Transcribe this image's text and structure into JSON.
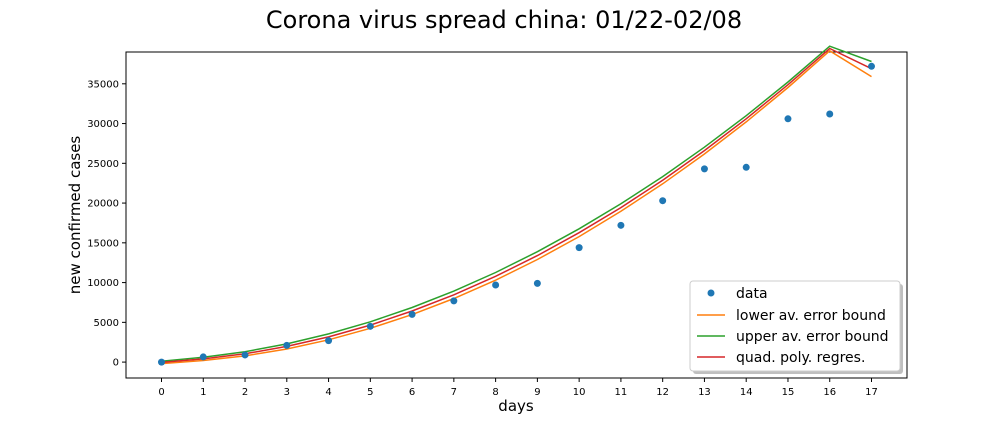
{
  "chart_data": {
    "type": "line",
    "title": "Corona virus spread china: 01/22-02/08",
    "xlabel": "days",
    "ylabel": "new confirmed cases",
    "xlim": [
      -0.85,
      17.85
    ],
    "ylim": [
      -2000,
      39000
    ],
    "x_ticks": [
      0,
      1,
      2,
      3,
      4,
      5,
      6,
      7,
      8,
      9,
      10,
      11,
      12,
      13,
      14,
      15,
      16,
      17
    ],
    "y_ticks": [
      0,
      5000,
      10000,
      15000,
      20000,
      25000,
      30000,
      35000
    ],
    "grid": false,
    "legend_position": "bottom-right",
    "data_series": {
      "name": "data",
      "color": "#1f77b4",
      "x": [
        0,
        1,
        2,
        3,
        4,
        5,
        6,
        7,
        8,
        9,
        10,
        11,
        12,
        13,
        14,
        15,
        16,
        17
      ],
      "y": [
        0,
        650,
        900,
        2100,
        2700,
        4500,
        6000,
        7700,
        9700,
        9900,
        14400,
        17200,
        20300,
        24300,
        24500,
        30600,
        31200,
        37200
      ]
    },
    "fit_series": [
      {
        "name": "lower av. error bound",
        "color": "#ff7f0e",
        "x": [
          0,
          1,
          2,
          3,
          4,
          5,
          6,
          7,
          8,
          9,
          10,
          11,
          12,
          13,
          14,
          15,
          16,
          17
        ],
        "y": [
          -190,
          201,
          780,
          1648,
          2802,
          4246,
          5977,
          7997,
          10305,
          12902,
          15787,
          18960,
          22422,
          26173,
          30212,
          34539,
          39155,
          35900
        ]
      },
      {
        "name": "upper av. error bound",
        "color": "#2ca02c",
        "x": [
          0,
          1,
          2,
          3,
          4,
          5,
          6,
          7,
          8,
          9,
          10,
          11,
          12,
          13,
          14,
          15,
          16,
          17
        ],
        "y": [
          110,
          601,
          1311,
          2293,
          3546,
          5070,
          6866,
          8932,
          11270,
          13879,
          16759,
          19910,
          23333,
          27026,
          30991,
          35226,
          39733,
          37800
        ]
      },
      {
        "name": "quad. poly. regres.",
        "color": "#d62728",
        "x": [
          0,
          1,
          2,
          3,
          4,
          5,
          6,
          7,
          8,
          9,
          10,
          11,
          12,
          13,
          14,
          15,
          16,
          17
        ],
        "y": [
          -40,
          400,
          1045,
          1970,
          3174,
          4658,
          6421,
          8464,
          10787,
          13390,
          16273,
          19435,
          22877,
          26600,
          30601,
          34883,
          39444,
          36900
        ]
      }
    ],
    "legend": [
      "data",
      "lower av. error bound",
      "upper av. error bound",
      "quad. poly. regres."
    ]
  }
}
